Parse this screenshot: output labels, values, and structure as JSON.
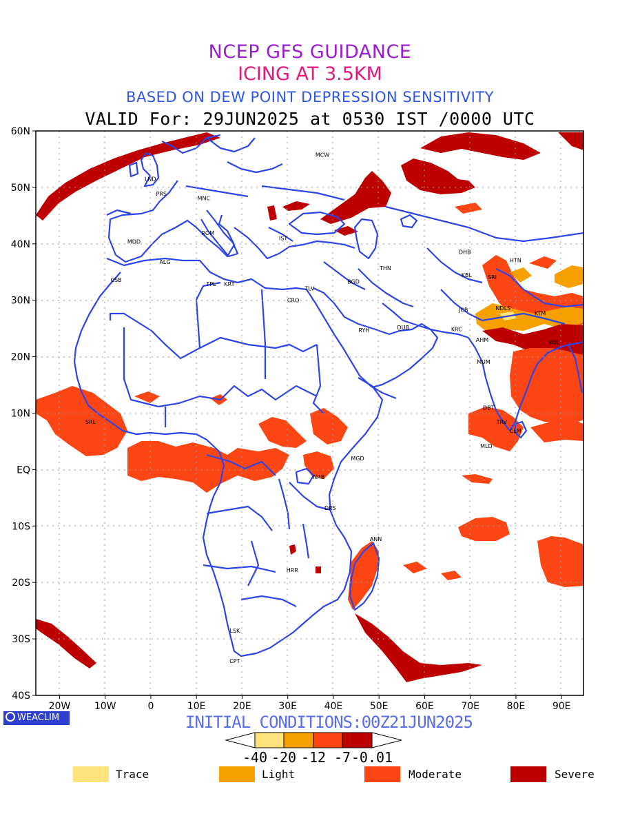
{
  "titles": {
    "line1": "NCEP GFS GUIDANCE",
    "line2": "ICING AT 3.5KM",
    "line3": "BASED ON DEW POINT DEPRESSION SENSITIVITY",
    "line4": "VALID For: 29JUN2025 at 0530 IST /0000 UTC"
  },
  "initial_conditions": "INITIAL CONDITIONS:00Z21JUN2025",
  "brand": "WEACLIM",
  "lat_labels": [
    "60N",
    "50N",
    "40N",
    "30N",
    "20N",
    "10N",
    "EQ",
    "10S",
    "20S",
    "30S",
    "40S"
  ],
  "lon_labels": [
    "20W",
    "10W",
    "0",
    "10E",
    "20E",
    "30E",
    "40E",
    "50E",
    "60E",
    "70E",
    "80E",
    "90E"
  ],
  "colorbar": {
    "labels": [
      "-40",
      "-20",
      "-12",
      "-7",
      "-0.01"
    ],
    "colors": [
      "#fee47a",
      "#f7a000",
      "#fb4614",
      "#bd0000"
    ]
  },
  "legend": [
    {
      "label": "Trace",
      "color": "#fee47a"
    },
    {
      "label": "Light",
      "color": "#f7a000"
    },
    {
      "label": "Moderate",
      "color": "#fb4614"
    },
    {
      "label": "Severe",
      "color": "#bd0000"
    }
  ],
  "stations": [
    {
      "code": "MCW",
      "lon": 37.6,
      "lat": 55.8
    },
    {
      "code": "LND",
      "lon": -0.1,
      "lat": 51.5
    },
    {
      "code": "PRS",
      "lon": 2.3,
      "lat": 48.9
    },
    {
      "code": "MNC",
      "lon": 11.6,
      "lat": 48.1
    },
    {
      "code": "ROM",
      "lon": 12.5,
      "lat": 41.9
    },
    {
      "code": "MDD",
      "lon": -3.7,
      "lat": 40.4
    },
    {
      "code": "IST",
      "lon": 29.0,
      "lat": 41.0
    },
    {
      "code": "ALG",
      "lon": 3.1,
      "lat": 36.8
    },
    {
      "code": "CSB",
      "lon": -7.6,
      "lat": 33.6
    },
    {
      "code": "TPL",
      "lon": 13.2,
      "lat": 32.9
    },
    {
      "code": "KRT",
      "lon": 17.2,
      "lat": 32.9
    },
    {
      "code": "CRO",
      "lon": 31.2,
      "lat": 30.0
    },
    {
      "code": "TLV",
      "lon": 34.8,
      "lat": 32.1
    },
    {
      "code": "BGD",
      "lon": 44.4,
      "lat": 33.3
    },
    {
      "code": "THN",
      "lon": 51.4,
      "lat": 35.7
    },
    {
      "code": "RYH",
      "lon": 46.7,
      "lat": 24.7
    },
    {
      "code": "DUB",
      "lon": 55.3,
      "lat": 25.2
    },
    {
      "code": "DHB",
      "lon": 68.8,
      "lat": 38.6
    },
    {
      "code": "KBL",
      "lon": 69.2,
      "lat": 34.5
    },
    {
      "code": "HTN",
      "lon": 79.9,
      "lat": 37.1
    },
    {
      "code": "SRI",
      "lon": 74.8,
      "lat": 34.1
    },
    {
      "code": "JCB",
      "lon": 68.5,
      "lat": 28.3
    },
    {
      "code": "NDLS",
      "lon": 77.2,
      "lat": 28.6
    },
    {
      "code": "KTM",
      "lon": 85.3,
      "lat": 27.7
    },
    {
      "code": "KRC",
      "lon": 67.0,
      "lat": 24.9
    },
    {
      "code": "AHM",
      "lon": 72.6,
      "lat": 23.0
    },
    {
      "code": "KOL",
      "lon": 88.4,
      "lat": 22.6
    },
    {
      "code": "MUM",
      "lon": 72.9,
      "lat": 19.1
    },
    {
      "code": "DBT",
      "lon": 74.0,
      "lat": 11.0
    },
    {
      "code": "TRV",
      "lon": 76.9,
      "lat": 8.5
    },
    {
      "code": "CLM",
      "lon": 79.9,
      "lat": 6.9
    },
    {
      "code": "MLD",
      "lon": 73.5,
      "lat": 4.2
    },
    {
      "code": "SRL",
      "lon": -13.2,
      "lat": 8.5
    },
    {
      "code": "MGD",
      "lon": 45.3,
      "lat": 2.0
    },
    {
      "code": "NRB",
      "lon": 36.8,
      "lat": -1.3
    },
    {
      "code": "DRS",
      "lon": 39.3,
      "lat": -6.8
    },
    {
      "code": "ANN",
      "lon": 49.3,
      "lat": -12.3
    },
    {
      "code": "HRR",
      "lon": 31.0,
      "lat": -17.8
    },
    {
      "code": "LSK",
      "lon": 18.4,
      "lat": -28.5
    },
    {
      "code": "CPT",
      "lon": 18.4,
      "lat": -33.9
    }
  ]
}
